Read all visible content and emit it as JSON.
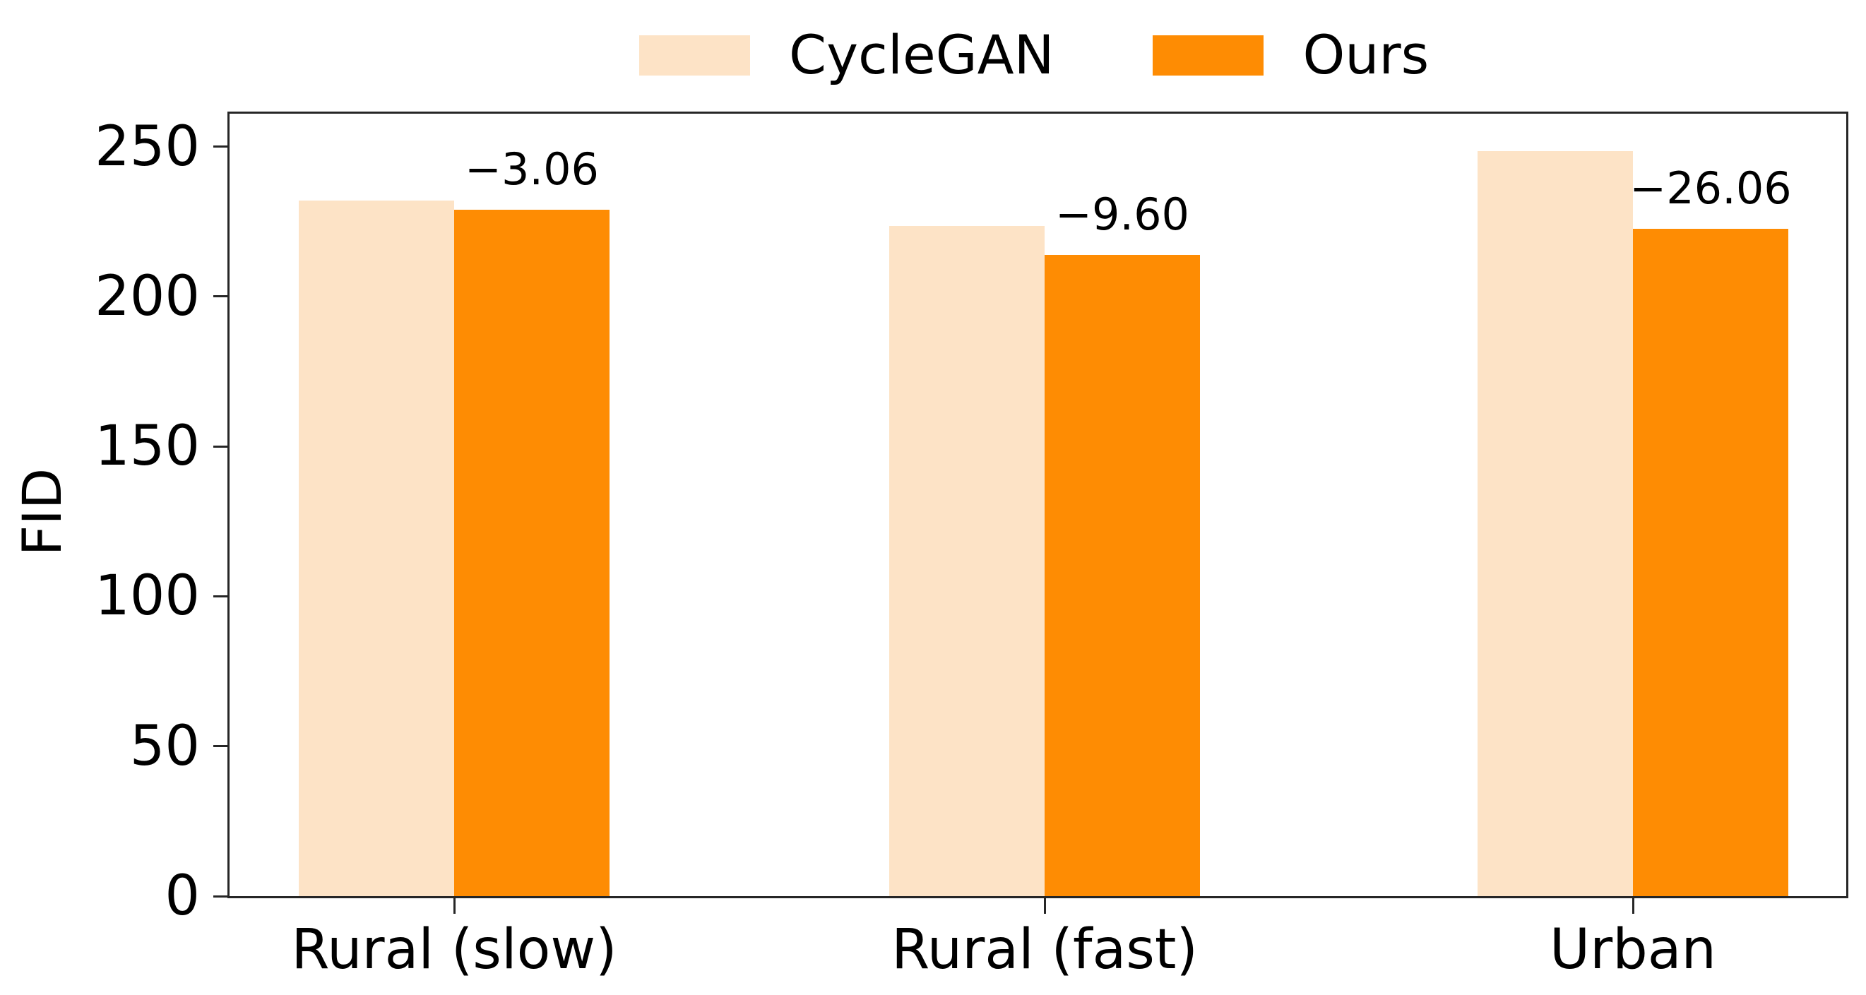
{
  "figure": {
    "background": "#ffffff",
    "axis_color": "#262626",
    "text_color": "#000000"
  },
  "legend": {
    "items": [
      {
        "label": "CycleGAN",
        "swatch_color": "#fde3c6"
      },
      {
        "label": "Ours",
        "swatch_color": "#fe8c03"
      }
    ]
  },
  "chart_data": {
    "type": "bar",
    "title": "",
    "categories": [
      "Rural (slow)",
      "Rural (fast)",
      "Urban"
    ],
    "series": [
      {
        "name": "CycleGAN",
        "color": "#fde3c6",
        "values": [
          232.0,
          223.6,
          248.6
        ]
      },
      {
        "name": "Ours",
        "color": "#fe8c03",
        "values": [
          228.9,
          214.0,
          222.5
        ]
      }
    ],
    "bar_labels": {
      "on_series": "Ours",
      "values": [
        "−3.06",
        "−9.60",
        "−26.06"
      ]
    },
    "xlabel": "",
    "ylabel": "FID",
    "yticks": [
      "0",
      "50",
      "100",
      "150",
      "200",
      "250"
    ],
    "ylim": [
      0,
      261
    ],
    "grid": false,
    "legend_position": "top-center"
  }
}
